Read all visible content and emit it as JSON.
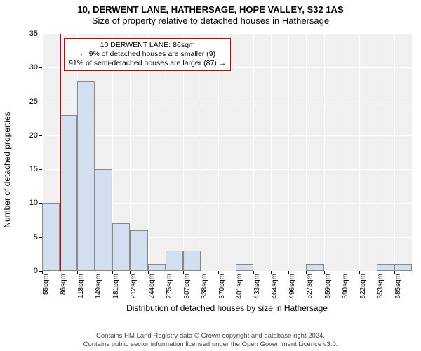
{
  "title": {
    "line1": "10, DERWENT LANE, HATHERSAGE, HOPE VALLEY, S32 1AS",
    "line2": "Size of property relative to detached houses in Hathersage"
  },
  "chart": {
    "type": "histogram",
    "background_color": "#f0f0f0",
    "grid_color": "#ffffff",
    "bar_fill": "#d3deef",
    "bar_border": "#888888",
    "marker_color": "#cc0000",
    "ylabel": "Number of detached properties",
    "xlabel": "Distribution of detached houses by size in Hathersage",
    "ylim": [
      0,
      35
    ],
    "yticks": [
      0,
      5,
      10,
      15,
      20,
      25,
      30,
      35
    ],
    "xcategories": [
      "55sqm",
      "86sqm",
      "118sqm",
      "149sqm",
      "181sqm",
      "212sqm",
      "244sqm",
      "275sqm",
      "307sqm",
      "338sqm",
      "370sqm",
      "401sqm",
      "433sqm",
      "464sqm",
      "496sqm",
      "527sqm",
      "559sqm",
      "590sqm",
      "622sqm",
      "653sqm",
      "685sqm"
    ],
    "values": [
      10,
      23,
      28,
      15,
      7,
      6,
      1,
      3,
      3,
      0,
      0,
      1,
      0,
      0,
      0,
      1,
      0,
      0,
      0,
      1,
      1
    ],
    "marker_position_index": 1,
    "bar_width_ratio": 1.0,
    "tick_fontsize": 11,
    "label_fontsize": 12,
    "title_fontsize": 13
  },
  "annotation": {
    "border_color": "#cc0000",
    "background": "#ffffff",
    "line1": "10 DERWENT LANE: 86sqm",
    "line2": "← 9% of detached houses are smaller (9)",
    "line3": "91% of semi-detached houses are larger (87) →"
  },
  "footer": {
    "line1": "Contains HM Land Registry data © Crown copyright and database right 2024.",
    "line2": "Contains public sector information licensed under the Open Government Licence v3.0."
  }
}
